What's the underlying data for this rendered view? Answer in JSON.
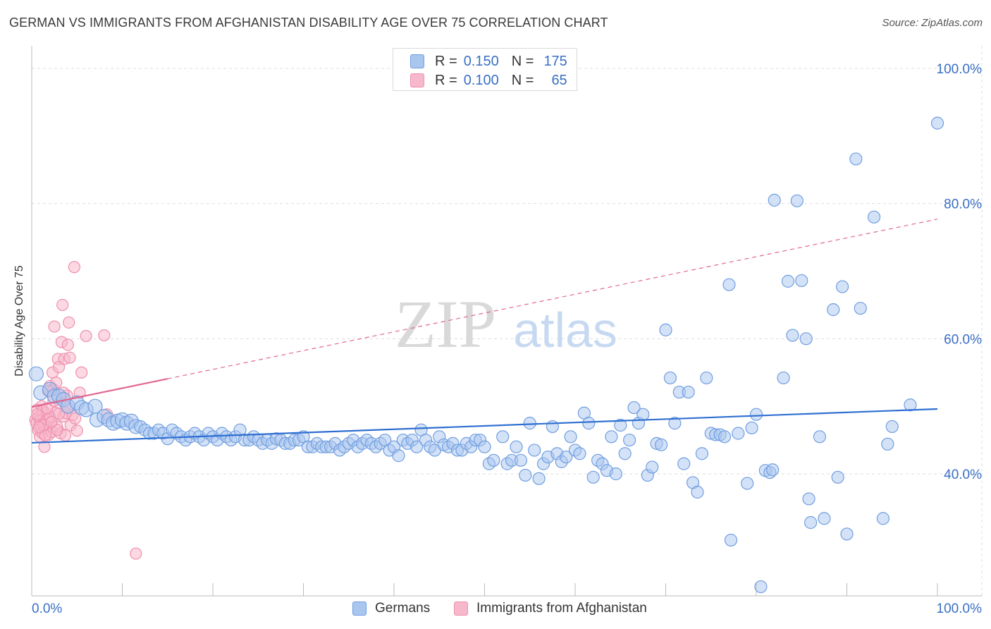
{
  "title": "GERMAN VS IMMIGRANTS FROM AFGHANISTAN DISABILITY AGE OVER 75 CORRELATION CHART",
  "source": "Source: ZipAtlas.com",
  "watermark": {
    "zip": "ZIP",
    "atlas": "atlas"
  },
  "legend": {
    "rows": [
      {
        "r_label": "R =",
        "r_value": "0.150",
        "n_label": "N =",
        "n_value": "175"
      },
      {
        "r_label": "R =",
        "r_value": "0.100",
        "n_label": "N =",
        "n_value": "65"
      }
    ]
  },
  "bottom_legend": {
    "germans": "Germans",
    "afghan": "Immigrants from Afghanistan"
  },
  "colors": {
    "blue_fill": "#a9c6ef",
    "blue_stroke": "#6f9ee0",
    "blue_line": "#2f6fd1",
    "pink_fill": "#f7b8cb",
    "pink_stroke": "#ee8fae",
    "pink_line": "#e2678e",
    "tick_text": "#3a6fc4",
    "grid": "#dddddd"
  },
  "chart_data": {
    "type": "scatter",
    "title": "GERMAN VS IMMIGRANTS FROM AFGHANISTAN DISABILITY AGE OVER 75 CORRELATION CHART",
    "xlabel": "",
    "ylabel": "Disability Age Over 75",
    "xlim": [
      0,
      100
    ],
    "ylim": [
      21,
      102
    ],
    "x_tick_labels": [
      "0.0%",
      "100.0%"
    ],
    "y_ticks": [
      40,
      60,
      80,
      100
    ],
    "y_tick_labels": [
      "40.0%",
      "60.0%",
      "80.0%",
      "100.0%"
    ],
    "grid": true,
    "legend_position": "top-center",
    "series": [
      {
        "name": "Germans",
        "R": 0.15,
        "N": 175,
        "trend": {
          "x": [
            0,
            100
          ],
          "y": [
            44.6,
            49.6
          ]
        },
        "points": [
          [
            0.5,
            54.8
          ],
          [
            1,
            52
          ],
          [
            2,
            52.5
          ],
          [
            2.5,
            51.5
          ],
          [
            3,
            51.5
          ],
          [
            3.5,
            51
          ],
          [
            4,
            50
          ],
          [
            5,
            50.5
          ],
          [
            5.5,
            49.8
          ],
          [
            6,
            49.5
          ],
          [
            7,
            50
          ],
          [
            7.2,
            48
          ],
          [
            8,
            48.5
          ],
          [
            8.5,
            48
          ],
          [
            9,
            47.5
          ],
          [
            9.5,
            47.8
          ],
          [
            10,
            48
          ],
          [
            10.5,
            47.5
          ],
          [
            11,
            47.8
          ],
          [
            11.5,
            47
          ],
          [
            12,
            47
          ],
          [
            12.5,
            46.5
          ],
          [
            13,
            46
          ],
          [
            13.5,
            46
          ],
          [
            14,
            46.5
          ],
          [
            14.5,
            46
          ],
          [
            15,
            45.2
          ],
          [
            15.5,
            46.5
          ],
          [
            16,
            46
          ],
          [
            16.5,
            45.5
          ],
          [
            17,
            45
          ],
          [
            17.5,
            45.5
          ],
          [
            18,
            46
          ],
          [
            18.5,
            45.5
          ],
          [
            19,
            45
          ],
          [
            19.5,
            46
          ],
          [
            20,
            45.5
          ],
          [
            20.5,
            45
          ],
          [
            21,
            46
          ],
          [
            21.5,
            45.5
          ],
          [
            22,
            45
          ],
          [
            22.5,
            45.5
          ],
          [
            23,
            46.5
          ],
          [
            23.5,
            45
          ],
          [
            24,
            45
          ],
          [
            24.5,
            45.5
          ],
          [
            25,
            45
          ],
          [
            25.5,
            44.5
          ],
          [
            26,
            45
          ],
          [
            26.5,
            44.5
          ],
          [
            27,
            45.2
          ],
          [
            27.5,
            45
          ],
          [
            28,
            44.5
          ],
          [
            28.5,
            44.5
          ],
          [
            29,
            45
          ],
          [
            29.5,
            45
          ],
          [
            30,
            45.5
          ],
          [
            30.5,
            44
          ],
          [
            31,
            44
          ],
          [
            31.5,
            44.5
          ],
          [
            32,
            44
          ],
          [
            32.5,
            44
          ],
          [
            33,
            44
          ],
          [
            33.5,
            44.5
          ],
          [
            34,
            43.5
          ],
          [
            34.5,
            44
          ],
          [
            35,
            44.5
          ],
          [
            35.5,
            45
          ],
          [
            36,
            44
          ],
          [
            36.5,
            44.5
          ],
          [
            37,
            45
          ],
          [
            37.5,
            44.5
          ],
          [
            38,
            44
          ],
          [
            38.5,
            44.5
          ],
          [
            39,
            45
          ],
          [
            39.5,
            43.5
          ],
          [
            40,
            44
          ],
          [
            40.5,
            42.7
          ],
          [
            41,
            45
          ],
          [
            41.5,
            44.5
          ],
          [
            42,
            45
          ],
          [
            42.5,
            44
          ],
          [
            43,
            46.5
          ],
          [
            43.5,
            45
          ],
          [
            44,
            44
          ],
          [
            44.5,
            43.5
          ],
          [
            45,
            45.5
          ],
          [
            45.5,
            44.3
          ],
          [
            46,
            44
          ],
          [
            46.5,
            44.5
          ],
          [
            47,
            43.5
          ],
          [
            47.5,
            43.5
          ],
          [
            48,
            44.5
          ],
          [
            48.5,
            44
          ],
          [
            49,
            45
          ],
          [
            49.5,
            45
          ],
          [
            50,
            44
          ],
          [
            50.5,
            41.5
          ],
          [
            51,
            42
          ],
          [
            52,
            45.5
          ],
          [
            52.5,
            41.5
          ],
          [
            53,
            42
          ],
          [
            53.5,
            44
          ],
          [
            54,
            42
          ],
          [
            54.5,
            39.8
          ],
          [
            55,
            47.5
          ],
          [
            55.5,
            43.5
          ],
          [
            56,
            39.3
          ],
          [
            56.5,
            41.5
          ],
          [
            57,
            42.5
          ],
          [
            57.5,
            47
          ],
          [
            58,
            43
          ],
          [
            58.5,
            41.8
          ],
          [
            59,
            42.5
          ],
          [
            59.5,
            45.5
          ],
          [
            60,
            43.5
          ],
          [
            60.5,
            43
          ],
          [
            61,
            49
          ],
          [
            61.5,
            47.5
          ],
          [
            62,
            39.5
          ],
          [
            62.5,
            42
          ],
          [
            63,
            41.5
          ],
          [
            63.5,
            40.5
          ],
          [
            64,
            45.5
          ],
          [
            64.5,
            40
          ],
          [
            65,
            47.2
          ],
          [
            65.5,
            43
          ],
          [
            66,
            45
          ],
          [
            66.5,
            49.8
          ],
          [
            67,
            47.5
          ],
          [
            67.5,
            48.8
          ],
          [
            68,
            39.8
          ],
          [
            68.5,
            41
          ],
          [
            69,
            44.5
          ],
          [
            69.5,
            44.3
          ],
          [
            70,
            61.3
          ],
          [
            70.5,
            54.2
          ],
          [
            71,
            47.5
          ],
          [
            71.5,
            52.1
          ],
          [
            72,
            41.5
          ],
          [
            72.5,
            52.1
          ],
          [
            73,
            38.7
          ],
          [
            73.5,
            37.3
          ],
          [
            74,
            43
          ],
          [
            74.5,
            54.2
          ],
          [
            75,
            46
          ],
          [
            75.5,
            45.8
          ],
          [
            76,
            45.8
          ],
          [
            76.5,
            45.5
          ],
          [
            77,
            68
          ],
          [
            77.2,
            30.2
          ],
          [
            78,
            46
          ],
          [
            79,
            38.6
          ],
          [
            79.5,
            46.8
          ],
          [
            80,
            48.8
          ],
          [
            80.5,
            23.3
          ],
          [
            81,
            40.5
          ],
          [
            81.5,
            40.2
          ],
          [
            81.8,
            40.6
          ],
          [
            82,
            80.5
          ],
          [
            83,
            54.2
          ],
          [
            83.5,
            68.5
          ],
          [
            84,
            60.5
          ],
          [
            84.5,
            80.4
          ],
          [
            85,
            68.6
          ],
          [
            85.5,
            60
          ],
          [
            85.8,
            36.3
          ],
          [
            86,
            32.8
          ],
          [
            87,
            45.5
          ],
          [
            87.5,
            33.4
          ],
          [
            88.5,
            64.3
          ],
          [
            89,
            39.5
          ],
          [
            89.5,
            67.7
          ],
          [
            90,
            31.1
          ],
          [
            91,
            86.6
          ],
          [
            91.5,
            64.5
          ],
          [
            93,
            78
          ],
          [
            94,
            33.4
          ],
          [
            94.5,
            44.4
          ],
          [
            95,
            47
          ],
          [
            97,
            50.2
          ],
          [
            100,
            91.9
          ]
        ]
      },
      {
        "name": "Immigrants from Afghanistan",
        "R": 0.1,
        "N": 65,
        "trend": {
          "x": [
            0,
            100
          ],
          "y": [
            49.9,
            77.7
          ]
        },
        "points": [
          [
            0.4,
            48
          ],
          [
            0.5,
            47.5
          ],
          [
            0.6,
            49.5
          ],
          [
            0.7,
            46.5
          ],
          [
            0.8,
            48.5
          ],
          [
            0.9,
            45.5
          ],
          [
            1,
            47
          ],
          [
            1.1,
            50
          ],
          [
            1.2,
            46
          ],
          [
            1.3,
            48.2
          ],
          [
            1.4,
            44
          ],
          [
            1.5,
            47.3
          ],
          [
            1.6,
            49
          ],
          [
            1.7,
            46.8
          ],
          [
            1.8,
            48
          ],
          [
            1.9,
            45.8
          ],
          [
            2,
            53
          ],
          [
            2.1,
            47.5
          ],
          [
            2.2,
            46.2
          ],
          [
            2.3,
            55
          ],
          [
            2.4,
            52.5
          ],
          [
            2.5,
            61.8
          ],
          [
            2.6,
            49
          ],
          [
            2.7,
            53.5
          ],
          [
            2.8,
            47
          ],
          [
            2.9,
            57
          ],
          [
            3,
            55.8
          ],
          [
            3.1,
            50.5
          ],
          [
            3.2,
            46
          ],
          [
            3.3,
            59.5
          ],
          [
            3.4,
            65
          ],
          [
            3.5,
            48.5
          ],
          [
            3.6,
            57
          ],
          [
            3.7,
            45.7
          ],
          [
            3.8,
            49
          ],
          [
            3.9,
            51.6
          ],
          [
            4,
            59.1
          ],
          [
            4.1,
            62.4
          ],
          [
            4.2,
            57.2
          ],
          [
            4.3,
            47.2
          ],
          [
            4.5,
            48.7
          ],
          [
            4.7,
            70.6
          ],
          [
            4.8,
            48.2
          ],
          [
            5,
            46.4
          ],
          [
            5.3,
            52
          ],
          [
            5.5,
            55
          ],
          [
            6,
            60.4
          ],
          [
            8,
            60.5
          ],
          [
            8.3,
            48.8
          ],
          [
            11.5,
            28.2
          ],
          [
            1.2,
            49.3
          ],
          [
            1.8,
            52.3
          ],
          [
            2.4,
            50.8
          ],
          [
            0.9,
            47.9
          ],
          [
            1.5,
            45.7
          ],
          [
            2.8,
            46.5
          ],
          [
            3.5,
            52
          ],
          [
            4.0,
            49.8
          ],
          [
            0.6,
            48.8
          ],
          [
            1.3,
            47.2
          ],
          [
            2.0,
            48.4
          ],
          [
            3.0,
            48.9
          ],
          [
            1.7,
            49.7
          ],
          [
            2.2,
            47.7
          ],
          [
            0.8,
            46.9
          ]
        ]
      }
    ]
  }
}
